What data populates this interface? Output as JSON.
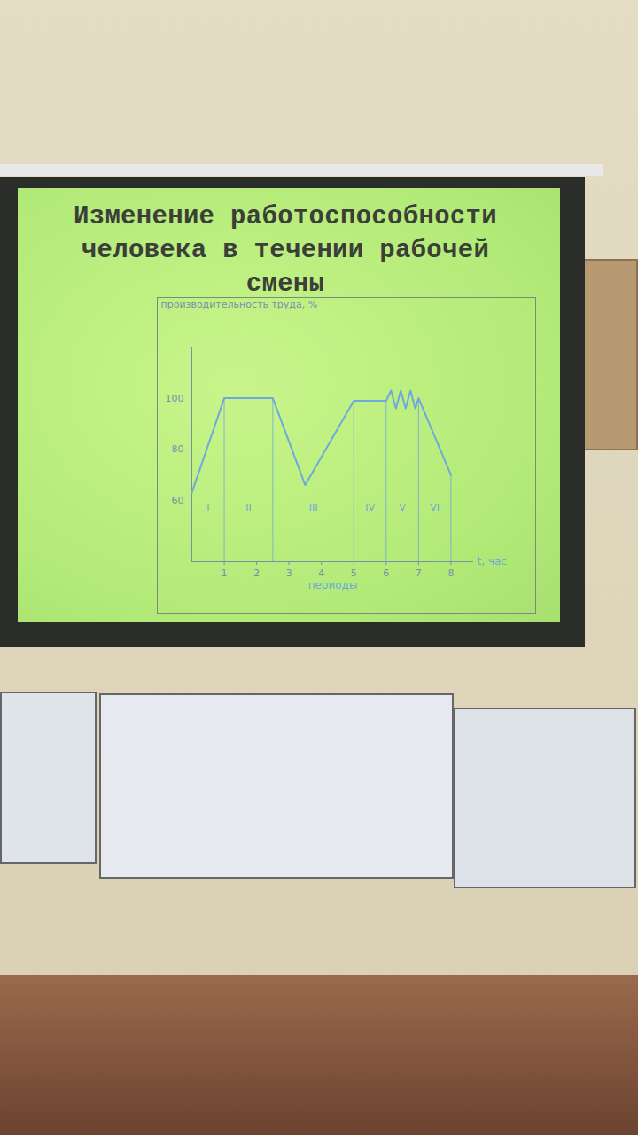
{
  "chart_data": {
    "type": "line",
    "title": "Изменение работоспособности человека в течении рабочей смены",
    "ylabel": "производительность труда, %",
    "xlabel": "t, час",
    "x_caption": "периоды",
    "x": [
      0,
      1,
      2.5,
      3.5,
      5,
      6,
      6.15,
      6.3,
      6.45,
      6.6,
      6.75,
      6.9,
      7,
      8
    ],
    "values": [
      63,
      100,
      100,
      66,
      99,
      99,
      103,
      96,
      103,
      96,
      103,
      96,
      100,
      70
    ],
    "color": "#6fa8dc",
    "xlim": [
      0,
      8.7
    ],
    "ylim": [
      36,
      120
    ],
    "xticks": [
      1,
      2,
      3,
      4,
      5,
      6,
      7,
      8
    ],
    "yticks": [
      60,
      80,
      100
    ],
    "grid": false,
    "periods": {
      "labels": [
        "I",
        "II",
        "III",
        "IV",
        "V",
        "VI"
      ],
      "bounds": [
        1,
        2.5,
        5,
        6,
        7,
        8
      ]
    }
  }
}
